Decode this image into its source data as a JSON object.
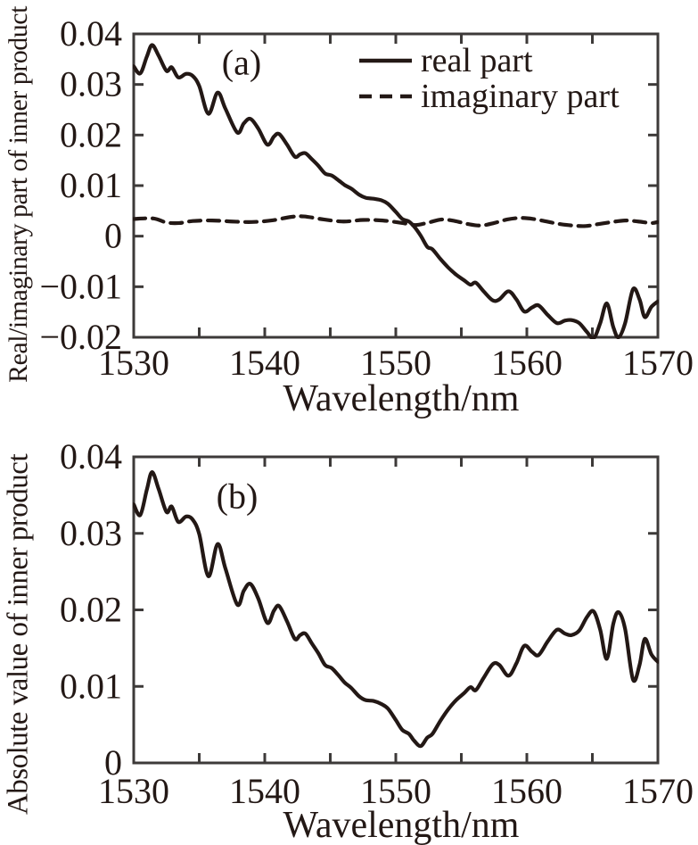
{
  "figure": {
    "background": "#ffffff",
    "ink_color": "#231815",
    "frame_color": "#3d3a39"
  },
  "chart_data": [
    {
      "id": "a",
      "type": "line",
      "panel_label": "(a)",
      "xlabel": "Wavelength/nm",
      "ylabel": "Real/imaginary part of inner product",
      "xlim": [
        1530,
        1570
      ],
      "ylim": [
        -0.02,
        0.04
      ],
      "grid": false,
      "xticks": [
        {
          "v": 1530,
          "label": "1530"
        },
        {
          "v": 1535,
          "label": ""
        },
        {
          "v": 1540,
          "label": "1540"
        },
        {
          "v": 1545,
          "label": ""
        },
        {
          "v": 1550,
          "label": "1550"
        },
        {
          "v": 1555,
          "label": ""
        },
        {
          "v": 1560,
          "label": "1560"
        },
        {
          "v": 1565,
          "label": ""
        },
        {
          "v": 1570,
          "label": "1570"
        }
      ],
      "yticks": [
        {
          "v": 0.04,
          "label": "0.04"
        },
        {
          "v": 0.03,
          "label": "0.03"
        },
        {
          "v": 0.02,
          "label": "0.02"
        },
        {
          "v": 0.01,
          "label": "0.01"
        },
        {
          "v": 0,
          "label": "0"
        },
        {
          "v": -0.01,
          "label": "−0.01"
        },
        {
          "v": -0.02,
          "label": "−0.02"
        }
      ],
      "legend": {
        "position": "top-right",
        "border": false,
        "entries": [
          {
            "label": "real part",
            "line_style": "solid"
          },
          {
            "label": "imaginary part",
            "line_style": "dashed"
          }
        ]
      },
      "series": [
        {
          "name": "real part",
          "line_style": "solid",
          "color": "#231815",
          "points": [
            [
              1530.0,
              0.0336
            ],
            [
              1530.5,
              0.0322
            ],
            [
              1531.0,
              0.0355
            ],
            [
              1531.4,
              0.0378
            ],
            [
              1531.9,
              0.0357
            ],
            [
              1532.5,
              0.0327
            ],
            [
              1532.9,
              0.0334
            ],
            [
              1533.4,
              0.0314
            ],
            [
              1534.0,
              0.0321
            ],
            [
              1534.5,
              0.0317
            ],
            [
              1535.0,
              0.0297
            ],
            [
              1535.7,
              0.0242
            ],
            [
              1536.4,
              0.0284
            ],
            [
              1537.0,
              0.0252
            ],
            [
              1537.9,
              0.0205
            ],
            [
              1538.4,
              0.0223
            ],
            [
              1538.9,
              0.0232
            ],
            [
              1539.5,
              0.0213
            ],
            [
              1540.2,
              0.0181
            ],
            [
              1540.7,
              0.0197
            ],
            [
              1541.1,
              0.0202
            ],
            [
              1541.7,
              0.0181
            ],
            [
              1542.3,
              0.0157
            ],
            [
              1542.7,
              0.0162
            ],
            [
              1543.1,
              0.0164
            ],
            [
              1543.6,
              0.0152
            ],
            [
              1544.1,
              0.0139
            ],
            [
              1544.6,
              0.0124
            ],
            [
              1545.1,
              0.012
            ],
            [
              1545.6,
              0.0111
            ],
            [
              1546.1,
              0.0101
            ],
            [
              1546.6,
              0.0094
            ],
            [
              1547.2,
              0.0082
            ],
            [
              1547.7,
              0.0076
            ],
            [
              1548.3,
              0.0074
            ],
            [
              1548.9,
              0.0071
            ],
            [
              1549.4,
              0.0064
            ],
            [
              1550.0,
              0.0048
            ],
            [
              1550.5,
              0.0034
            ],
            [
              1551.0,
              0.0029
            ],
            [
              1551.4,
              0.0019
            ],
            [
              1551.9,
              0.0001
            ],
            [
              1552.4,
              -0.0021
            ],
            [
              1552.8,
              -0.0026
            ],
            [
              1553.4,
              -0.0045
            ],
            [
              1554.0,
              -0.0062
            ],
            [
              1554.6,
              -0.0076
            ],
            [
              1555.2,
              -0.0087
            ],
            [
              1555.7,
              -0.0096
            ],
            [
              1556.1,
              -0.0092
            ],
            [
              1556.7,
              -0.0109
            ],
            [
              1557.4,
              -0.0127
            ],
            [
              1557.9,
              -0.0125
            ],
            [
              1558.6,
              -0.0109
            ],
            [
              1559.2,
              -0.0125
            ],
            [
              1559.8,
              -0.0149
            ],
            [
              1560.4,
              -0.0141
            ],
            [
              1560.9,
              -0.0137
            ],
            [
              1561.6,
              -0.0156
            ],
            [
              1562.3,
              -0.0172
            ],
            [
              1562.9,
              -0.0167
            ],
            [
              1563.4,
              -0.0166
            ],
            [
              1564.0,
              -0.0172
            ],
            [
              1564.6,
              -0.019
            ],
            [
              1565.1,
              -0.0202
            ],
            [
              1565.6,
              -0.0172
            ],
            [
              1566.1,
              -0.0133
            ],
            [
              1566.6,
              -0.018
            ],
            [
              1567.0,
              -0.02
            ],
            [
              1567.5,
              -0.0172
            ],
            [
              1568.1,
              -0.0105
            ],
            [
              1568.6,
              -0.0125
            ],
            [
              1569.0,
              -0.016
            ],
            [
              1569.5,
              -0.014
            ],
            [
              1570.0,
              -0.0129
            ]
          ]
        },
        {
          "name": "imaginary part",
          "line_style": "dashed",
          "color": "#231815",
          "points": [
            [
              1530.0,
              0.0034
            ],
            [
              1531.5,
              0.0035
            ],
            [
              1532.5,
              0.0027
            ],
            [
              1533.5,
              0.0026
            ],
            [
              1534.5,
              0.003
            ],
            [
              1536.0,
              0.0031
            ],
            [
              1537.5,
              0.0029
            ],
            [
              1539.0,
              0.0028
            ],
            [
              1540.5,
              0.0031
            ],
            [
              1542.0,
              0.0038
            ],
            [
              1543.0,
              0.0039
            ],
            [
              1544.5,
              0.0033
            ],
            [
              1546.0,
              0.0029
            ],
            [
              1547.5,
              0.0032
            ],
            [
              1549.0,
              0.0031
            ],
            [
              1550.5,
              0.0026
            ],
            [
              1551.5,
              0.0022
            ],
            [
              1552.5,
              0.0027
            ],
            [
              1553.5,
              0.0033
            ],
            [
              1554.5,
              0.003
            ],
            [
              1555.5,
              0.0024
            ],
            [
              1556.5,
              0.0021
            ],
            [
              1557.5,
              0.0026
            ],
            [
              1558.5,
              0.0033
            ],
            [
              1559.5,
              0.0036
            ],
            [
              1560.5,
              0.0034
            ],
            [
              1561.5,
              0.0029
            ],
            [
              1562.5,
              0.0024
            ],
            [
              1563.5,
              0.0021
            ],
            [
              1564.5,
              0.002
            ],
            [
              1565.5,
              0.0024
            ],
            [
              1566.5,
              0.0028
            ],
            [
              1567.5,
              0.0031
            ],
            [
              1568.5,
              0.0029
            ],
            [
              1569.5,
              0.0026
            ],
            [
              1570.0,
              0.0028
            ]
          ]
        }
      ]
    },
    {
      "id": "b",
      "type": "line",
      "panel_label": "(b)",
      "xlabel": "Wavelength/nm",
      "ylabel": "Absolute value of inner product",
      "xlim": [
        1530,
        1570
      ],
      "ylim": [
        0,
        0.04
      ],
      "grid": false,
      "xticks": [
        {
          "v": 1530,
          "label": "1530"
        },
        {
          "v": 1535,
          "label": ""
        },
        {
          "v": 1540,
          "label": "1540"
        },
        {
          "v": 1545,
          "label": ""
        },
        {
          "v": 1550,
          "label": "1550"
        },
        {
          "v": 1555,
          "label": ""
        },
        {
          "v": 1560,
          "label": "1560"
        },
        {
          "v": 1565,
          "label": ""
        },
        {
          "v": 1570,
          "label": "1570"
        }
      ],
      "yticks": [
        {
          "v": 0.04,
          "label": "0.04"
        },
        {
          "v": 0.03,
          "label": "0.03"
        },
        {
          "v": 0.02,
          "label": "0.02"
        },
        {
          "v": 0.01,
          "label": "0.01"
        },
        {
          "v": 0,
          "label": "0"
        }
      ],
      "series": [
        {
          "name": "absolute value",
          "line_style": "solid",
          "color": "#231815",
          "points": [
            [
              1530.0,
              0.0338
            ],
            [
              1530.5,
              0.0324
            ],
            [
              1531.0,
              0.0357
            ],
            [
              1531.4,
              0.038
            ],
            [
              1531.9,
              0.0358
            ],
            [
              1532.5,
              0.0328
            ],
            [
              1532.9,
              0.0335
            ],
            [
              1533.4,
              0.0315
            ],
            [
              1534.0,
              0.0322
            ],
            [
              1534.5,
              0.0318
            ],
            [
              1535.0,
              0.0299
            ],
            [
              1535.7,
              0.0244
            ],
            [
              1536.4,
              0.0286
            ],
            [
              1537.0,
              0.0254
            ],
            [
              1537.9,
              0.0207
            ],
            [
              1538.4,
              0.0225
            ],
            [
              1538.9,
              0.0234
            ],
            [
              1539.5,
              0.0215
            ],
            [
              1540.2,
              0.0183
            ],
            [
              1540.7,
              0.0199
            ],
            [
              1541.1,
              0.0205
            ],
            [
              1541.7,
              0.0185
            ],
            [
              1542.3,
              0.0162
            ],
            [
              1542.7,
              0.0167
            ],
            [
              1543.1,
              0.0169
            ],
            [
              1543.6,
              0.0156
            ],
            [
              1544.1,
              0.0143
            ],
            [
              1544.6,
              0.0128
            ],
            [
              1545.1,
              0.0124
            ],
            [
              1545.6,
              0.0115
            ],
            [
              1546.1,
              0.0105
            ],
            [
              1546.6,
              0.0098
            ],
            [
              1547.2,
              0.0087
            ],
            [
              1547.7,
              0.0082
            ],
            [
              1548.3,
              0.0081
            ],
            [
              1548.9,
              0.0077
            ],
            [
              1549.4,
              0.0071
            ],
            [
              1550.0,
              0.0056
            ],
            [
              1550.5,
              0.0043
            ],
            [
              1551.0,
              0.0038
            ],
            [
              1551.4,
              0.0029
            ],
            [
              1551.9,
              0.0022
            ],
            [
              1552.4,
              0.0033
            ],
            [
              1552.8,
              0.0038
            ],
            [
              1553.4,
              0.0055
            ],
            [
              1554.0,
              0.007
            ],
            [
              1554.6,
              0.0082
            ],
            [
              1555.2,
              0.0091
            ],
            [
              1555.7,
              0.0099
            ],
            [
              1556.1,
              0.0095
            ],
            [
              1556.7,
              0.0111
            ],
            [
              1557.4,
              0.0129
            ],
            [
              1557.9,
              0.0128
            ],
            [
              1558.6,
              0.0114
            ],
            [
              1559.2,
              0.013
            ],
            [
              1559.8,
              0.0153
            ],
            [
              1560.4,
              0.0145
            ],
            [
              1560.9,
              0.0141
            ],
            [
              1561.6,
              0.0159
            ],
            [
              1562.3,
              0.0174
            ],
            [
              1562.9,
              0.0169
            ],
            [
              1563.4,
              0.0167
            ],
            [
              1564.0,
              0.0173
            ],
            [
              1564.6,
              0.0191
            ],
            [
              1565.1,
              0.0198
            ],
            [
              1565.6,
              0.0174
            ],
            [
              1566.1,
              0.0136
            ],
            [
              1566.6,
              0.0182
            ],
            [
              1567.0,
              0.0197
            ],
            [
              1567.5,
              0.0175
            ],
            [
              1568.1,
              0.0109
            ],
            [
              1568.6,
              0.0128
            ],
            [
              1569.0,
              0.0162
            ],
            [
              1569.5,
              0.0142
            ],
            [
              1570.0,
              0.0132
            ]
          ]
        }
      ]
    }
  ]
}
